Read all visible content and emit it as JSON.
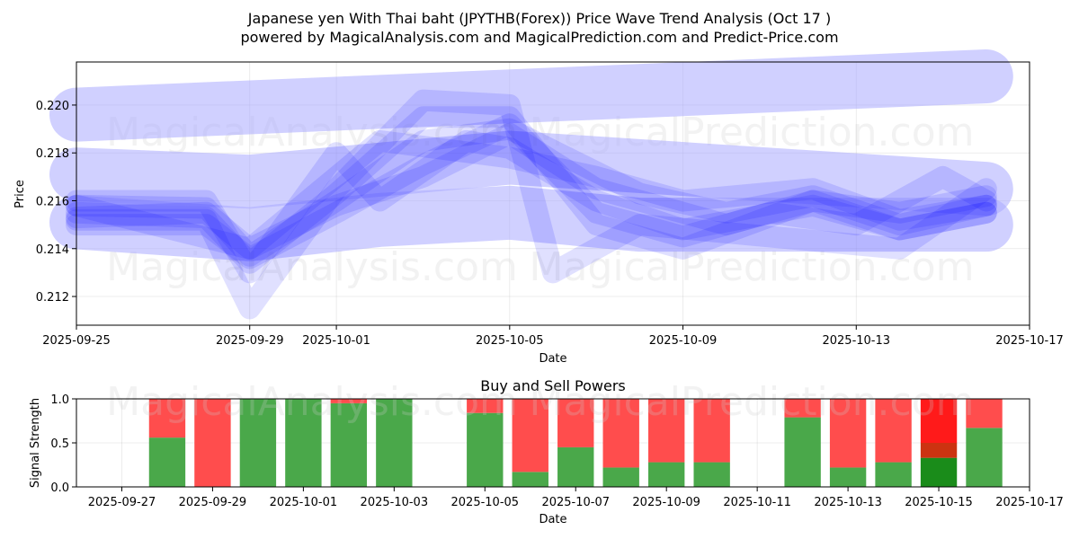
{
  "figure": {
    "title_line1": "Japanese yen With Thai baht (JPYTHB(Forex)) Price Wave Trend Analysis (Oct 17 )",
    "title_line2": "powered by MagicalAnalysis.com and MagicalPrediction.com and Predict-Price.com",
    "watermarks": [
      "MagicalAnalysis.com",
      "MagicalPrediction.com"
    ]
  },
  "chart_data": [
    {
      "type": "line",
      "title": "",
      "xlabel": "Date",
      "ylabel": "Price",
      "xlim": [
        "2025-09-25",
        "2025-10-17"
      ],
      "ylim": [
        0.2108,
        0.2218
      ],
      "x_ticks": [
        "2025-09-25",
        "2025-09-29",
        "2025-10-01",
        "2025-10-05",
        "2025-10-09",
        "2025-10-13",
        "2025-10-17"
      ],
      "y_ticks": [
        "0.212",
        "0.214",
        "0.216",
        "0.218",
        "0.220"
      ],
      "grid": true,
      "color": "#0000ff",
      "band_color": "#aaaaff",
      "bands": [
        {
          "x": [
            "2025-09-25",
            "2025-10-16"
          ],
          "y": [
            0.2196,
            0.2212
          ]
        },
        {
          "x": [
            "2025-09-25",
            "2025-09-29",
            "2025-10-05",
            "2025-10-16"
          ],
          "y": [
            0.2171,
            0.2168,
            0.2178,
            0.2165
          ]
        },
        {
          "x": [
            "2025-09-25",
            "2025-09-29",
            "2025-10-02",
            "2025-10-05",
            "2025-10-08",
            "2025-10-16"
          ],
          "y": [
            0.2151,
            0.2146,
            0.2152,
            0.2155,
            0.215,
            0.215
          ]
        }
      ],
      "series": [
        {
          "x": [
            "2025-09-25",
            "2025-09-28",
            "2025-09-29",
            "2025-10-01",
            "2025-10-03",
            "2025-10-05",
            "2025-10-08",
            "2025-10-10",
            "2025-10-12",
            "2025-10-14",
            "2025-10-16"
          ],
          "y": [
            0.2158,
            0.2157,
            0.2137,
            0.216,
            0.2185,
            0.219,
            0.2163,
            0.2155,
            0.2162,
            0.215,
            0.2158
          ]
        },
        {
          "x": [
            "2025-09-25",
            "2025-09-28",
            "2025-09-29",
            "2025-10-01",
            "2025-10-03",
            "2025-10-05",
            "2025-10-07",
            "2025-10-09",
            "2025-10-12",
            "2025-10-14",
            "2025-10-16"
          ],
          "y": [
            0.2155,
            0.2153,
            0.2134,
            0.2163,
            0.2195,
            0.2195,
            0.215,
            0.214,
            0.216,
            0.2155,
            0.2162
          ]
        },
        {
          "x": [
            "2025-09-25",
            "2025-09-28",
            "2025-09-29",
            "2025-10-01",
            "2025-10-03",
            "2025-10-05",
            "2025-10-06",
            "2025-10-08",
            "2025-10-11",
            "2025-10-14",
            "2025-10-16"
          ],
          "y": [
            0.2152,
            0.2152,
            0.2115,
            0.2165,
            0.2202,
            0.22,
            0.213,
            0.215,
            0.2145,
            0.214,
            0.2165
          ]
        },
        {
          "x": [
            "2025-09-25",
            "2025-09-28",
            "2025-09-29",
            "2025-10-01",
            "2025-10-02",
            "2025-10-04",
            "2025-10-05",
            "2025-10-07",
            "2025-10-09",
            "2025-10-12",
            "2025-10-14",
            "2025-10-16"
          ],
          "y": [
            0.216,
            0.216,
            0.213,
            0.218,
            0.216,
            0.2185,
            0.2182,
            0.216,
            0.2148,
            0.2158,
            0.2148,
            0.2155
          ]
        },
        {
          "x": [
            "2025-09-25",
            "2025-09-28",
            "2025-09-29",
            "2025-10-01",
            "2025-10-03",
            "2025-10-05",
            "2025-10-07",
            "2025-10-10",
            "2025-10-12",
            "2025-10-14",
            "2025-10-16"
          ],
          "y": [
            0.2153,
            0.2155,
            0.214,
            0.2158,
            0.217,
            0.2188,
            0.2165,
            0.215,
            0.216,
            0.2148,
            0.2155
          ]
        },
        {
          "x": [
            "2025-09-25",
            "2025-09-29",
            "2025-10-02",
            "2025-10-05",
            "2025-10-07",
            "2025-10-09",
            "2025-10-12",
            "2025-10-14",
            "2025-10-16"
          ],
          "y": [
            0.2158,
            0.214,
            0.2185,
            0.2178,
            0.217,
            0.216,
            0.2165,
            0.2152,
            0.2158
          ]
        },
        {
          "x": [
            "2025-09-25",
            "2025-09-28",
            "2025-09-29",
            "2025-10-01",
            "2025-10-03",
            "2025-10-05",
            "2025-10-07",
            "2025-10-09",
            "2025-10-11",
            "2025-10-13",
            "2025-10-15",
            "2025-10-16"
          ],
          "y": [
            0.215,
            0.215,
            0.2136,
            0.2155,
            0.2175,
            0.2192,
            0.2155,
            0.2145,
            0.2155,
            0.215,
            0.217,
            0.216
          ]
        }
      ]
    },
    {
      "type": "bar",
      "stacked": true,
      "title": "Buy and Sell Powers",
      "xlabel": "Date",
      "ylabel": "Signal Strength",
      "xlim": [
        "2025-09-26",
        "2025-10-17"
      ],
      "ylim": [
        0,
        1.0
      ],
      "x_ticks": [
        "2025-09-27",
        "2025-09-29",
        "2025-10-01",
        "2025-10-03",
        "2025-10-05",
        "2025-10-07",
        "2025-10-09",
        "2025-10-11",
        "2025-10-13",
        "2025-10-15",
        "2025-10-17"
      ],
      "y_ticks": [
        "0.0",
        "0.5",
        "1.0"
      ],
      "grid": true,
      "buy_color": "#4aa84a",
      "sell_color": "#ff4d4d",
      "highlight_buy_color": "#1a8c1a",
      "highlight_sell_color": "#ff1a1a",
      "highlight_mid_color": "#cc3311",
      "categories": [
        "2025-09-28",
        "2025-09-29",
        "2025-09-30",
        "2025-10-01",
        "2025-10-02",
        "2025-10-03",
        "2025-10-05",
        "2025-10-06",
        "2025-10-07",
        "2025-10-08",
        "2025-10-09",
        "2025-10-10",
        "2025-10-12",
        "2025-10-13",
        "2025-10-14",
        "2025-10-15",
        "2025-10-16"
      ],
      "series": [
        {
          "name": "Buy",
          "values": [
            0.56,
            0.0,
            1.0,
            1.0,
            0.95,
            1.0,
            0.84,
            0.17,
            0.45,
            0.22,
            0.28,
            0.28,
            0.79,
            0.22,
            0.28,
            0.33,
            0.67
          ]
        },
        {
          "name": "Sell",
          "values": [
            0.44,
            1.0,
            0.0,
            0.0,
            0.05,
            0.0,
            0.16,
            0.83,
            0.55,
            0.78,
            0.72,
            0.72,
            0.21,
            0.78,
            0.72,
            0.67,
            0.33
          ]
        }
      ],
      "highlight_category": "2025-10-15",
      "highlight_mid_value": 0.17
    }
  ]
}
